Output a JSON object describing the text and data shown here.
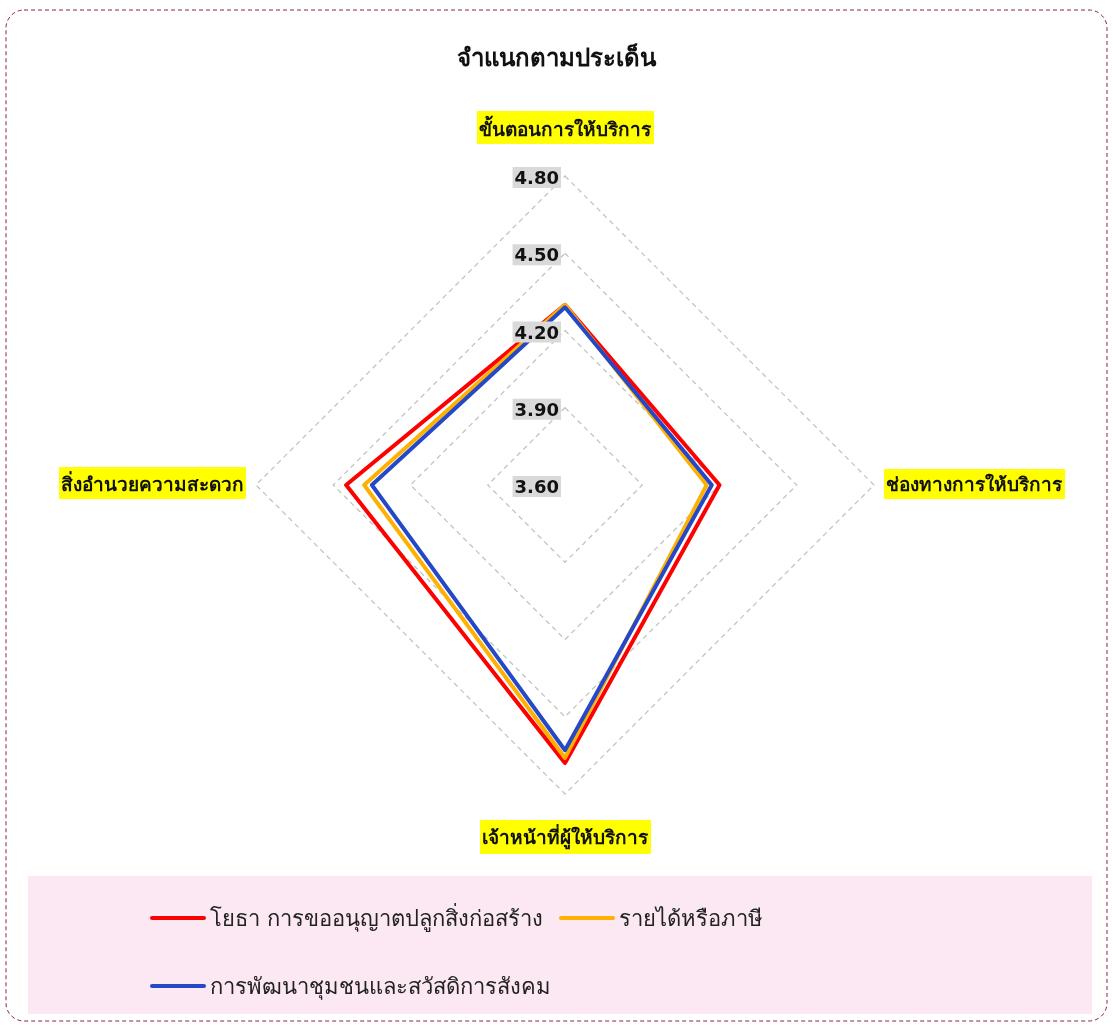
{
  "chart_data": {
    "type": "radar",
    "title": "จำแนกตามประเด็น",
    "categories": [
      "ขั้นตอนการให้บริการ",
      "ช่องทางการให้บริการ",
      "เจ้าหน้าที่ผู้ให้บริการ",
      "สิ่งอำนวยความสะดวก"
    ],
    "series": [
      {
        "name": "โยธา การขออนุญาตปลูกสิ่งก่อสร้าง",
        "color": "#ff0000",
        "values": [
          4.3,
          4.2,
          4.68,
          4.45
        ]
      },
      {
        "name": "รายได้หรือภาษี",
        "color": "#ffb000",
        "values": [
          4.3,
          4.15,
          4.66,
          4.38
        ]
      },
      {
        "name": "การพัฒนาชุมชนและสวัสดิการสังคม",
        "color": "#2448c8",
        "values": [
          4.29,
          4.17,
          4.63,
          4.35
        ]
      }
    ],
    "ylim": [
      3.6,
      4.8
    ],
    "yticks": [
      {
        "value": 3.6,
        "label": "3.60"
      },
      {
        "value": 3.9,
        "label": "3.90"
      },
      {
        "value": 4.2,
        "label": "4.20"
      },
      {
        "value": 4.5,
        "label": "4.50"
      },
      {
        "value": 4.8,
        "label": "4.80"
      }
    ],
    "grid": true,
    "legend": "bottom",
    "line_style": "solid",
    "marker": "none"
  }
}
